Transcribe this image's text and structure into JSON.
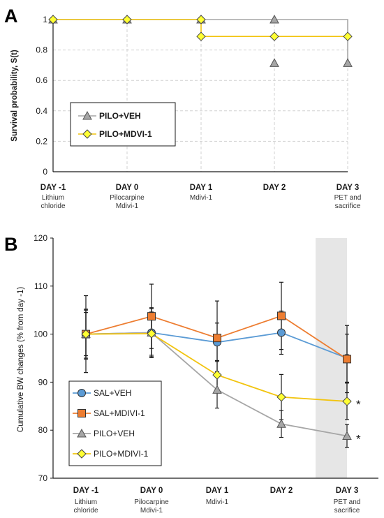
{
  "figure": {
    "colors": {
      "gray": "#a6a6a6",
      "gold": "#f2c40f",
      "diamond_fill": "#ffff33",
      "blue": "#5b9bd5",
      "orange": "#ed7d31",
      "shade": "#e6e6e6",
      "grid": "#d0d0d0"
    }
  },
  "chart_data": [
    {
      "panel": "A",
      "type": "line",
      "step": true,
      "ylabel": "Survival probability, S(t)",
      "xlabel": "",
      "ylim": [
        0,
        1
      ],
      "yticks": [
        "0",
        "0.2",
        "0.4",
        "0.6",
        "0.8",
        "1"
      ],
      "ytick_values": [
        0,
        0.2,
        0.4,
        0.6,
        0.8,
        1
      ],
      "grid": "horizontal dashed",
      "legend_position": "center-left",
      "categories": [
        "DAY -1",
        "DAY 0",
        "DAY 1",
        "DAY 2",
        "DAY 3"
      ],
      "category_sublabels": [
        [
          "Lithium",
          "chloride"
        ],
        [
          "Pilocarpine",
          "Mdivi-1"
        ],
        [
          "Mdivi-1"
        ],
        [],
        [
          "PET and",
          "sacrifice"
        ]
      ],
      "series": [
        {
          "name": "PILO+VEH",
          "color": "#a6a6a6",
          "marker": "triangle",
          "values": [
            1,
            1,
            1,
            1,
            0.714
          ],
          "markers_at": [
            [
              0,
              1
            ],
            [
              1,
              1
            ],
            [
              2,
              1
            ],
            [
              3,
              1
            ],
            [
              3,
              0.714
            ],
            [
              4,
              0.714
            ]
          ]
        },
        {
          "name": "PILO+MDVI-1",
          "color": "#f2c40f",
          "marker": "diamond",
          "values": [
            1,
            1,
            0.889,
            0.889,
            0.889
          ],
          "markers_at": [
            [
              0,
              1
            ],
            [
              1,
              1
            ],
            [
              2,
              1
            ],
            [
              2,
              0.889
            ],
            [
              3,
              0.889
            ],
            [
              4,
              0.889
            ]
          ]
        }
      ]
    },
    {
      "panel": "B",
      "type": "line",
      "ylabel": "Cumulative BW changes (% from day -1)",
      "xlabel": "",
      "ylim": [
        70,
        120
      ],
      "yticks": [
        "70",
        "80",
        "90",
        "100",
        "110",
        "120"
      ],
      "ytick_values": [
        70,
        80,
        90,
        100,
        110,
        120
      ],
      "grid": "none",
      "legend_position": "bottom-left",
      "shaded_category": "DAY 3",
      "categories": [
        "DAY -1",
        "DAY 0",
        "DAY 1",
        "DAY 2",
        "DAY 3"
      ],
      "category_sublabels": [
        [
          "Lithium",
          "chloride"
        ],
        [
          "Pilocarpine",
          "Mdivi-1"
        ],
        [
          "Mdivi-1"
        ],
        [],
        [
          "PET and",
          "sacrifice"
        ]
      ],
      "annotations": [
        {
          "text": "*",
          "series": "PILO+MDIVI-1"
        },
        {
          "text": "*",
          "series": "PILO+VEH"
        }
      ],
      "series": [
        {
          "name": "SAL+VEH",
          "color": "#5b9bd5",
          "marker": "circle",
          "values": [
            100,
            100.3,
            98.3,
            100.3,
            95
          ],
          "errors": [
            5,
            5,
            4,
            4.5,
            5
          ]
        },
        {
          "name": "SAL+MDIVI-1",
          "color": "#ed7d31",
          "marker": "square",
          "values": [
            100,
            103.7,
            99.2,
            103.8,
            94.8
          ],
          "errors": [
            8,
            6.7,
            7.7,
            7,
            7
          ]
        },
        {
          "name": "PILO+VEH",
          "color": "#a6a6a6",
          "marker": "triangle",
          "values": [
            100,
            100.3,
            88.4,
            81.3,
            78.8
          ],
          "errors": [
            5.2,
            5.2,
            3.8,
            2.8,
            2.4
          ]
        },
        {
          "name": "PILO+MDIVI-1",
          "color": "#f2c40f",
          "marker": "diamond",
          "values": [
            100,
            100.1,
            91.5,
            86.9,
            86
          ],
          "errors": [
            4.5,
            4.5,
            3,
            4.7,
            3.8
          ]
        }
      ]
    }
  ]
}
